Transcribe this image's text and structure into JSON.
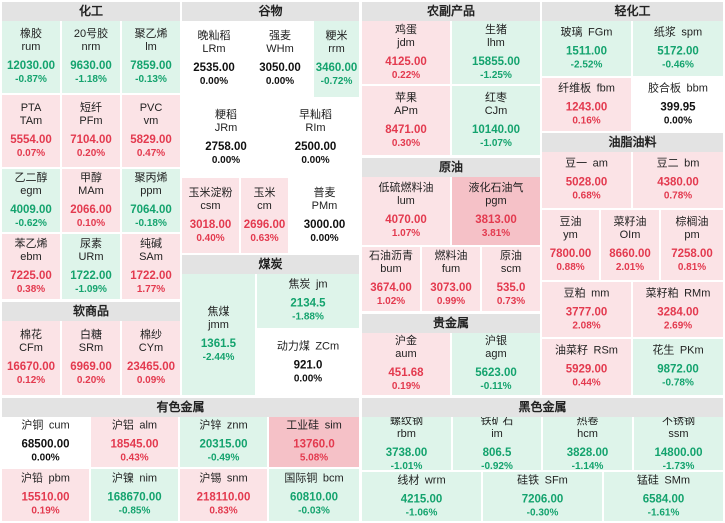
{
  "colors": {
    "up_bg": "#fbe3e6",
    "up_text": "#e33a4f",
    "down_bg": "#def4ea",
    "down_text": "#14a36e",
    "header_bg": "#e3e3e3"
  },
  "sectors": {
    "chemical": {
      "title": "化工",
      "items": [
        {
          "name": "橡胶",
          "code": "rum",
          "price": "12030.00",
          "pct": "-0.87%"
        },
        {
          "name": "20号胶",
          "code": "nrm",
          "price": "9630.00",
          "pct": "-1.18%"
        },
        {
          "name": "聚乙烯",
          "code": "lm",
          "price": "7859.00",
          "pct": "-0.13%"
        },
        {
          "name": "PTA",
          "code": "TAm",
          "price": "5554.00",
          "pct": "0.07%"
        },
        {
          "name": "短纤",
          "code": "PFm",
          "price": "7104.00",
          "pct": "0.20%"
        },
        {
          "name": "PVC",
          "code": "vm",
          "price": "5829.00",
          "pct": "0.47%"
        },
        {
          "name": "乙二醇",
          "code": "egm",
          "price": "4009.00",
          "pct": "-0.62%"
        },
        {
          "name": "甲醇",
          "code": "MAm",
          "price": "2066.00",
          "pct": "0.10%"
        },
        {
          "name": "聚丙烯",
          "code": "ppm",
          "price": "7064.00",
          "pct": "-0.18%"
        },
        {
          "name": "苯乙烯",
          "code": "ebm",
          "price": "7225.00",
          "pct": "0.38%"
        },
        {
          "name": "尿素",
          "code": "URm",
          "price": "1722.00",
          "pct": "-1.09%"
        },
        {
          "name": "纯碱",
          "code": "SAm",
          "price": "1722.00",
          "pct": "1.77%"
        }
      ]
    },
    "grain": {
      "title": "谷物",
      "items": [
        {
          "name": "晚籼稻",
          "code": "LRm",
          "price": "2535.00",
          "pct": "0.00%"
        },
        {
          "name": "强麦",
          "code": "WHm",
          "price": "3050.00",
          "pct": "0.00%"
        },
        {
          "name": "粳米",
          "code": "rrm",
          "price": "3460.00",
          "pct": "-0.72%"
        },
        {
          "name": "粳稻",
          "code": "JRm",
          "price": "2758.00",
          "pct": "0.00%"
        },
        {
          "name": "早籼稻",
          "code": "RIm",
          "price": "2500.00",
          "pct": "0.00%"
        },
        {
          "name": "玉米淀粉",
          "code": "csm",
          "price": "3018.00",
          "pct": "0.40%"
        },
        {
          "name": "玉米",
          "code": "cm",
          "price": "2696.00",
          "pct": "0.63%"
        },
        {
          "name": "普麦",
          "code": "PMm",
          "price": "3000.00",
          "pct": "0.00%"
        }
      ]
    },
    "coal": {
      "title": "煤炭",
      "items": [
        {
          "name": "焦煤",
          "code": "jmm",
          "price": "1361.5",
          "pct": "-2.44%"
        },
        {
          "name": "焦炭",
          "code": "jm",
          "price": "2134.5",
          "pct": "-1.88%"
        },
        {
          "name": "动力煤",
          "code": "ZCm",
          "price": "921.0",
          "pct": "0.00%"
        }
      ]
    },
    "agri": {
      "title": "农副产品",
      "items": [
        {
          "name": "鸡蛋",
          "code": "jdm",
          "price": "4125.00",
          "pct": "0.22%"
        },
        {
          "name": "生猪",
          "code": "lhm",
          "price": "15855.00",
          "pct": "-1.25%"
        },
        {
          "name": "苹果",
          "code": "APm",
          "price": "8471.00",
          "pct": "0.30%"
        },
        {
          "name": "红枣",
          "code": "CJm",
          "price": "10140.00",
          "pct": "-1.07%"
        }
      ]
    },
    "crude": {
      "title": "原油",
      "items": [
        {
          "name": "低硫燃料油",
          "code": "lum",
          "price": "4070.00",
          "pct": "1.07%"
        },
        {
          "name": "液化石油气",
          "code": "pgm",
          "price": "3813.00",
          "pct": "3.81%"
        },
        {
          "name": "石油沥青",
          "code": "bum",
          "price": "3674.00",
          "pct": "1.02%"
        },
        {
          "name": "燃料油",
          "code": "fum",
          "price": "3073.00",
          "pct": "0.99%"
        },
        {
          "name": "原油",
          "code": "scm",
          "price": "535.0",
          "pct": "0.73%"
        }
      ]
    },
    "precious": {
      "title": "贵金属",
      "items": [
        {
          "name": "沪金",
          "code": "aum",
          "price": "451.68",
          "pct": "0.19%"
        },
        {
          "name": "沪银",
          "code": "agm",
          "price": "5623.00",
          "pct": "-0.11%"
        }
      ]
    },
    "light": {
      "title": "轻化工",
      "items": [
        {
          "name": "玻璃",
          "code": "FGm",
          "price": "1511.00",
          "pct": "-2.52%"
        },
        {
          "name": "纸浆",
          "code": "spm",
          "price": "5172.00",
          "pct": "-0.46%"
        },
        {
          "name": "纤维板",
          "code": "fbm",
          "price": "1243.00",
          "pct": "0.16%"
        },
        {
          "name": "胶合板",
          "code": "bbm",
          "price": "399.95",
          "pct": "0.00%"
        }
      ]
    },
    "oil": {
      "title": "油脂油料",
      "items": [
        {
          "name": "豆一",
          "code": "am",
          "price": "5028.00",
          "pct": "0.68%"
        },
        {
          "name": "豆二",
          "code": "bm",
          "price": "4380.00",
          "pct": "0.78%"
        },
        {
          "name": "豆油",
          "code": "ym",
          "price": "7800.00",
          "pct": "0.88%"
        },
        {
          "name": "菜籽油",
          "code": "OIm",
          "price": "8660.00",
          "pct": "2.01%"
        },
        {
          "name": "棕榈油",
          "code": "pm",
          "price": "7258.00",
          "pct": "0.81%"
        },
        {
          "name": "豆粕",
          "code": "mm",
          "price": "3777.00",
          "pct": "2.08%"
        },
        {
          "name": "菜籽粕",
          "code": "RMm",
          "price": "3284.00",
          "pct": "2.69%"
        },
        {
          "name": "油菜籽",
          "code": "RSm",
          "price": "5929.00",
          "pct": "0.44%"
        },
        {
          "name": "花生",
          "code": "PKm",
          "price": "9872.00",
          "pct": "-0.78%"
        }
      ]
    },
    "soft": {
      "title": "软商品",
      "items": [
        {
          "name": "棉花",
          "code": "CFm",
          "price": "16670.00",
          "pct": "0.12%"
        },
        {
          "name": "白糖",
          "code": "SRm",
          "price": "6969.00",
          "pct": "0.20%"
        },
        {
          "name": "棉纱",
          "code": "CYm",
          "price": "23465.00",
          "pct": "0.09%"
        }
      ]
    },
    "nonferrous": {
      "title": "有色金属",
      "items": [
        {
          "name": "沪铜",
          "code": "cum",
          "price": "68500.00",
          "pct": "0.00%"
        },
        {
          "name": "沪铝",
          "code": "alm",
          "price": "18545.00",
          "pct": "0.43%"
        },
        {
          "name": "沪锌",
          "code": "znm",
          "price": "20315.00",
          "pct": "-0.49%"
        },
        {
          "name": "工业硅",
          "code": "sim",
          "price": "13760.0",
          "pct": "5.08%"
        },
        {
          "name": "沪铅",
          "code": "pbm",
          "price": "15510.00",
          "pct": "0.19%"
        },
        {
          "name": "沪镍",
          "code": "nim",
          "price": "168670.00",
          "pct": "-0.85%"
        },
        {
          "name": "沪锡",
          "code": "snm",
          "price": "218110.00",
          "pct": "0.83%"
        },
        {
          "name": "国际铜",
          "code": "bcm",
          "price": "60810.00",
          "pct": "-0.03%"
        }
      ]
    },
    "ferrous": {
      "title": "黑色金属",
      "items": [
        {
          "name": "螺纹钢",
          "code": "rbm",
          "price": "3738.00",
          "pct": "-1.01%"
        },
        {
          "name": "铁矿石",
          "code": "im",
          "price": "806.5",
          "pct": "-0.92%"
        },
        {
          "name": "热卷",
          "code": "hcm",
          "price": "3828.00",
          "pct": "-1.14%"
        },
        {
          "name": "不锈钢",
          "code": "ssm",
          "price": "14800.00",
          "pct": "-1.73%"
        },
        {
          "name": "线材",
          "code": "wrm",
          "price": "4215.00",
          "pct": "-1.06%"
        },
        {
          "name": "硅铁",
          "code": "SFm",
          "price": "7206.00",
          "pct": "-0.30%"
        },
        {
          "name": "锰硅",
          "code": "SMm",
          "price": "6584.00",
          "pct": "-1.61%"
        }
      ]
    }
  }
}
